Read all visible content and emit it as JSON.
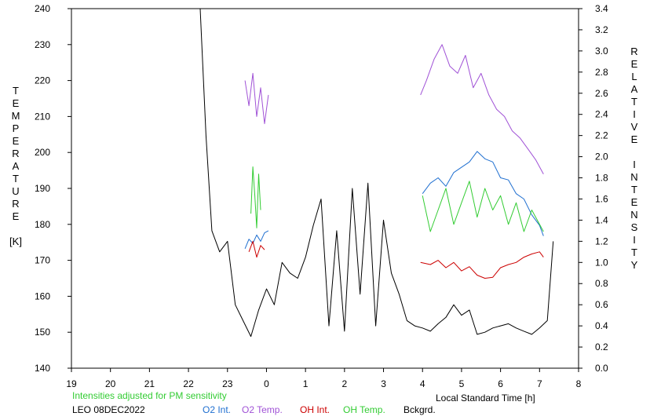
{
  "chart_data": {
    "type": "line",
    "title": "",
    "xlabel": "Local Standard Time [h]",
    "ylabel_left": [
      "T",
      "E",
      "M",
      "P",
      "E",
      "R",
      "A",
      "T",
      "U",
      "R",
      "E",
      "",
      "[K]"
    ],
    "ylabel_right": [
      "R",
      "E",
      "L",
      "A",
      "T",
      "I",
      "V",
      "E",
      "",
      "I",
      "N",
      "T",
      "E",
      "N",
      "S",
      "I",
      "T",
      "Y"
    ],
    "x_ticks": [
      "19",
      "20",
      "21",
      "22",
      "23",
      "0",
      "1",
      "2",
      "3",
      "4",
      "5",
      "6",
      "7",
      "8"
    ],
    "y_left_ticks": [
      "140",
      "150",
      "160",
      "170",
      "180",
      "190",
      "200",
      "210",
      "220",
      "230",
      "240"
    ],
    "y_right_ticks": [
      "0.0",
      "0.2",
      "0.4",
      "0.6",
      "0.8",
      "1.0",
      "1.2",
      "1.4",
      "1.6",
      "1.8",
      "2.0",
      "2.2",
      "2.4",
      "2.6",
      "2.8",
      "3.0",
      "3.2",
      "3.4"
    ],
    "xlim": [
      19,
      32
    ],
    "ylim_left": [
      140,
      240
    ],
    "ylim_right": [
      0,
      3.4
    ],
    "grid": false,
    "annotations": {
      "note": "Intensities adjusted for PM sensitivity",
      "station": "LEO 08DEC2022"
    },
    "colors": {
      "o2_int": "#1f6fd0",
      "o2_temp": "#a052d6",
      "oh_int": "#cc0000",
      "oh_temp": "#33cc33",
      "bckgrd": "#000000",
      "note": "#33cc33"
    },
    "series": [
      {
        "name": "O2 Int.",
        "axis": "right",
        "color": "#1f6fd0",
        "segments": [
          {
            "x": [
              23.45,
              23.55,
              23.65,
              23.75,
              23.85,
              23.95,
              24.05
            ],
            "y": [
              1.13,
              1.22,
              1.18,
              1.26,
              1.2,
              1.28,
              1.3
            ]
          },
          {
            "x": [
              28.0,
              28.2,
              28.4,
              28.6,
              28.8,
              29.0,
              29.2,
              29.4,
              29.6,
              29.8,
              30.0,
              30.2,
              30.4,
              30.6,
              30.8,
              31.0,
              31.1
            ],
            "y": [
              1.65,
              1.75,
              1.8,
              1.72,
              1.85,
              1.9,
              1.95,
              2.05,
              1.98,
              1.95,
              1.8,
              1.78,
              1.65,
              1.6,
              1.45,
              1.35,
              1.25
            ]
          }
        ]
      },
      {
        "name": "O2 Temp.",
        "axis": "left",
        "color": "#a052d6",
        "segments": [
          {
            "x": [
              23.45,
              23.55,
              23.65,
              23.75,
              23.85,
              23.95,
              24.05
            ],
            "y": [
              220,
              213,
              222,
              210,
              218,
              208,
              216
            ]
          },
          {
            "x": [
              27.95,
              28.1,
              28.3,
              28.5,
              28.7,
              28.9,
              29.1,
              29.3,
              29.5,
              29.7,
              29.9,
              30.1,
              30.3,
              30.5,
              30.7,
              30.9,
              31.1
            ],
            "y": [
              216,
              220,
              226,
              230,
              224,
              222,
              227,
              218,
              222,
              216,
              212,
              210,
              206,
              204,
              201,
              198,
              194
            ]
          }
        ]
      },
      {
        "name": "OH Int.",
        "axis": "right",
        "color": "#cc0000",
        "segments": [
          {
            "x": [
              23.55,
              23.65,
              23.75,
              23.85,
              23.95
            ],
            "y": [
              1.1,
              1.2,
              1.05,
              1.16,
              1.12
            ]
          },
          {
            "x": [
              27.95,
              28.2,
              28.4,
              28.6,
              28.8,
              29.0,
              29.2,
              29.4,
              29.6,
              29.8,
              30.0,
              30.2,
              30.4,
              30.6,
              30.8,
              31.0,
              31.1
            ],
            "y": [
              1.0,
              0.98,
              1.02,
              0.95,
              1.0,
              0.92,
              0.96,
              0.88,
              0.85,
              0.86,
              0.95,
              0.98,
              1.0,
              1.05,
              1.08,
              1.1,
              1.05
            ]
          }
        ]
      },
      {
        "name": "OH Temp.",
        "axis": "left",
        "color": "#33cc33",
        "segments": [
          {
            "x": [
              23.6,
              23.65,
              23.7,
              23.75,
              23.8,
              23.85
            ],
            "y": [
              183,
              196,
              188,
              179,
              194,
              184
            ]
          },
          {
            "x": [
              28.0,
              28.2,
              28.4,
              28.6,
              28.8,
              29.0,
              29.2,
              29.4,
              29.6,
              29.8,
              30.0,
              30.2,
              30.4,
              30.6,
              30.8,
              31.0,
              31.1
            ],
            "y": [
              188,
              178,
              184,
              190,
              180,
              186,
              192,
              182,
              190,
              184,
              188,
              180,
              186,
              178,
              184,
              180,
              178
            ]
          }
        ]
      },
      {
        "name": "Bckgrd.",
        "axis": "right",
        "color": "#000000",
        "segments": [
          {
            "x": [
              22.3,
              22.45,
              22.6,
              22.8,
              23.0,
              23.2,
              23.4,
              23.6,
              23.8,
              24.0,
              24.2,
              24.4,
              24.6,
              24.8,
              25.0,
              25.2,
              25.4,
              25.6,
              25.8,
              26.0,
              26.2,
              26.4,
              26.6,
              26.8,
              27.0,
              27.2,
              27.4,
              27.6,
              27.8,
              28.0,
              28.2,
              28.4,
              28.6,
              28.8,
              29.0,
              29.2,
              29.4,
              29.6,
              29.8,
              30.0,
              30.2,
              30.4,
              30.6,
              30.8,
              31.0,
              31.2,
              31.35
            ],
            "y": [
              3.4,
              2.2,
              1.3,
              1.1,
              1.2,
              0.6,
              0.45,
              0.3,
              0.55,
              0.75,
              0.6,
              1.0,
              0.9,
              0.85,
              1.05,
              1.35,
              1.6,
              0.4,
              1.3,
              0.35,
              1.7,
              0.7,
              1.75,
              0.4,
              1.4,
              0.9,
              0.7,
              0.45,
              0.4,
              0.38,
              0.35,
              0.42,
              0.48,
              0.6,
              0.5,
              0.55,
              0.32,
              0.34,
              0.38,
              0.4,
              0.42,
              0.38,
              0.35,
              0.32,
              0.38,
              0.45,
              1.2
            ]
          }
        ]
      }
    ]
  }
}
